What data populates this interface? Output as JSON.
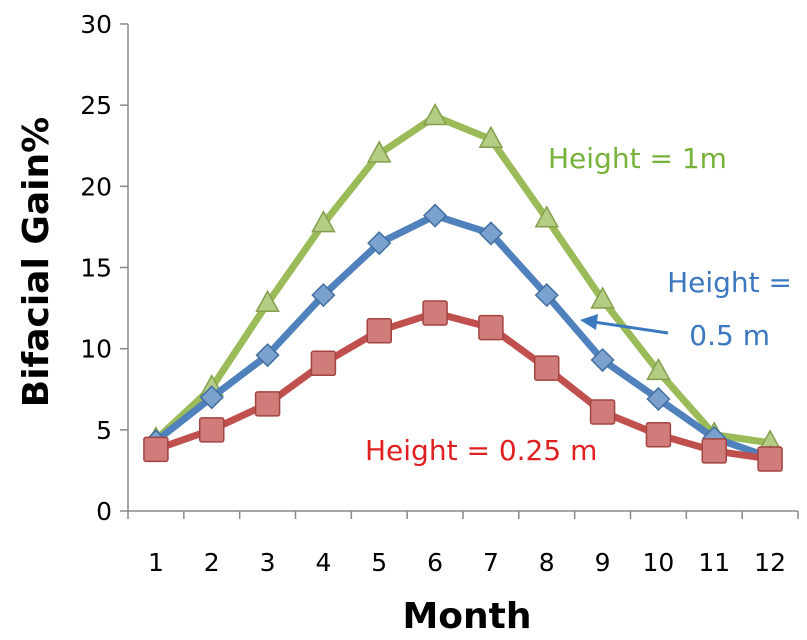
{
  "chart_data": {
    "type": "line",
    "title": "",
    "xlabel": "Month",
    "ylabel": "Bifacial Gain%",
    "categories": [
      "1",
      "2",
      "3",
      "4",
      "5",
      "6",
      "7",
      "8",
      "9",
      "10",
      "11",
      "12"
    ],
    "ylim": [
      0,
      30
    ],
    "yticks": [
      "0",
      "5",
      "10",
      "15",
      "20",
      "25",
      "30"
    ],
    "grid": false,
    "legend": "none",
    "series": [
      {
        "name": "Height = 1m",
        "color": "#9BBB59",
        "marker": "triangle",
        "values": [
          4.4,
          7.6,
          12.8,
          17.7,
          22.0,
          24.3,
          22.9,
          18.0,
          13.0,
          8.6,
          4.7,
          4.2
        ]
      },
      {
        "name": "Height = 0.5 m",
        "color": "#4F81BD",
        "marker": "diamond",
        "values": [
          4.3,
          7.0,
          9.6,
          13.3,
          16.5,
          18.2,
          17.1,
          13.3,
          9.3,
          6.9,
          4.5,
          3.3
        ]
      },
      {
        "name": "Height = 0.25 m",
        "color": "#C0504D",
        "marker": "square",
        "values": [
          3.8,
          5.0,
          6.6,
          9.1,
          11.1,
          12.2,
          11.3,
          8.8,
          6.1,
          4.7,
          3.7,
          3.2
        ]
      }
    ],
    "annotations": [
      {
        "text": "Height = 1m",
        "color": "#77B23A"
      },
      {
        "text_line1": "Height =",
        "text_line2": "0.5 m",
        "color": "#3C78C0"
      },
      {
        "text": "Height = 0.25 m",
        "color": "#E02020"
      }
    ]
  }
}
